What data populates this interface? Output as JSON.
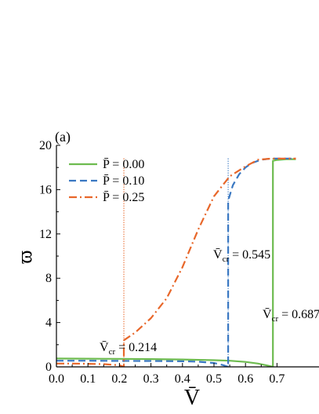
{
  "chart_data": {
    "type": "line",
    "panel_label": "(a)",
    "xlabel": "V̄",
    "ylabel": "ϖ",
    "xlim": [
      0.0,
      0.76
    ],
    "ylim": [
      0,
      20
    ],
    "xticks": [
      "0.0",
      "0.1",
      "0.2",
      "0.3",
      "0.4",
      "0.5",
      "0.6",
      "0.7"
    ],
    "yticks": [
      "0",
      "4",
      "8",
      "12",
      "16",
      "20"
    ],
    "grid": false,
    "legend_position": "top-left",
    "series": [
      {
        "name": "P̄ = 0.00",
        "color": "#6dbb4f",
        "dash": "solid",
        "x": [
          0.0,
          0.1,
          0.2,
          0.3,
          0.4,
          0.5,
          0.55,
          0.6,
          0.64,
          0.67,
          0.687,
          0.687,
          0.7,
          0.73,
          0.76
        ],
        "y": [
          0.75,
          0.74,
          0.72,
          0.7,
          0.67,
          0.6,
          0.55,
          0.45,
          0.3,
          0.12,
          0.0,
          18.6,
          18.68,
          18.75,
          18.75
        ]
      },
      {
        "name": "P̄ = 0.10",
        "color": "#3a78c2",
        "dash": "dashed",
        "x": [
          0.0,
          0.1,
          0.2,
          0.3,
          0.4,
          0.45,
          0.5,
          0.53,
          0.545,
          0.545,
          0.56,
          0.58,
          0.6,
          0.62,
          0.65,
          0.68,
          0.72,
          0.76
        ],
        "y": [
          0.55,
          0.55,
          0.54,
          0.53,
          0.5,
          0.47,
          0.35,
          0.15,
          0.0,
          15.0,
          16.4,
          17.4,
          18.0,
          18.4,
          18.7,
          18.8,
          18.8,
          18.8
        ]
      },
      {
        "name": "P̄ = 0.25",
        "color": "#e8672a",
        "dash": "dashdot",
        "x": [
          0.0,
          0.05,
          0.1,
          0.15,
          0.2,
          0.214,
          0.214,
          0.25,
          0.3,
          0.35,
          0.4,
          0.45,
          0.5,
          0.55,
          0.6,
          0.64,
          0.68,
          0.72,
          0.76
        ],
        "y": [
          0.3,
          0.3,
          0.28,
          0.25,
          0.15,
          0.0,
          2.4,
          3.1,
          4.4,
          6.2,
          9.0,
          12.4,
          15.4,
          17.2,
          18.1,
          18.7,
          18.8,
          18.8,
          18.8
        ]
      }
    ],
    "critical_lines": [
      {
        "x": 0.214,
        "color": "#e8672a"
      },
      {
        "x": 0.545,
        "color": "#3a78c2"
      },
      {
        "x": 0.687,
        "color": "#6dbb4f"
      }
    ],
    "annotations": [
      {
        "label": "V̄",
        "sub": "cr",
        "eq": " = 0.214"
      },
      {
        "label": "V̄",
        "sub": "cr",
        "eq": " = 0.545"
      },
      {
        "label": "V̄",
        "sub": "cr",
        "eq": " = 0.687"
      }
    ]
  }
}
